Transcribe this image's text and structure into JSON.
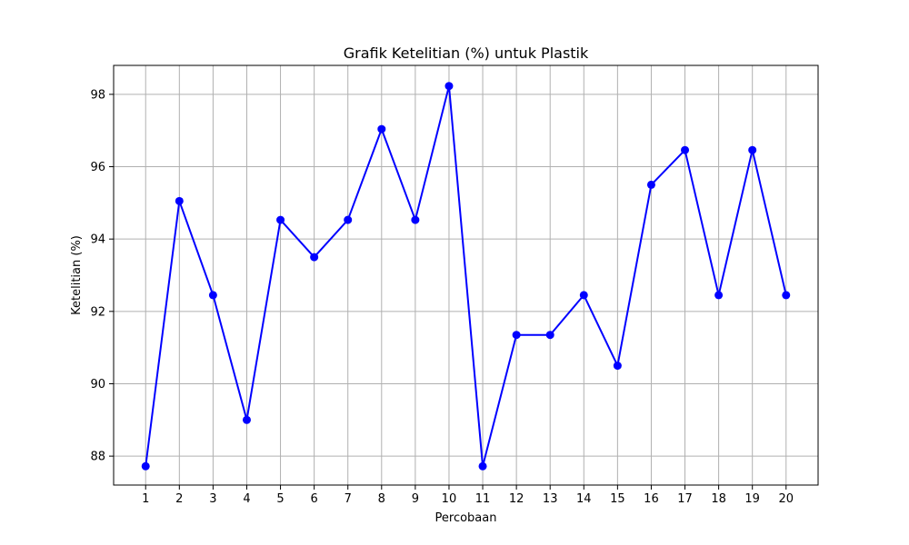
{
  "chart_data": {
    "type": "line",
    "title": "Grafik Ketelitian (%) untuk Plastik",
    "xlabel": "Percobaan",
    "ylabel": "Ketelitian (%)",
    "x": [
      1,
      2,
      3,
      4,
      5,
      6,
      7,
      8,
      9,
      10,
      11,
      12,
      13,
      14,
      15,
      16,
      17,
      18,
      19,
      20
    ],
    "series": [
      {
        "values": [
          87.72,
          95.05,
          92.45,
          89.0,
          94.53,
          93.5,
          94.53,
          97.04,
          94.53,
          98.23,
          87.72,
          91.35,
          91.35,
          92.45,
          90.5,
          95.5,
          96.46,
          92.45,
          96.46,
          92.45
        ],
        "color": "#0000ff",
        "marker": "circle"
      }
    ],
    "xticks": [
      1,
      2,
      3,
      4,
      5,
      6,
      7,
      8,
      9,
      10,
      11,
      12,
      13,
      14,
      15,
      16,
      17,
      18,
      19,
      20
    ],
    "yticks": [
      88,
      90,
      92,
      94,
      96,
      98
    ],
    "xlim": [
      0.05,
      20.95
    ],
    "ylim": [
      87.2,
      98.8
    ],
    "grid": true
  }
}
